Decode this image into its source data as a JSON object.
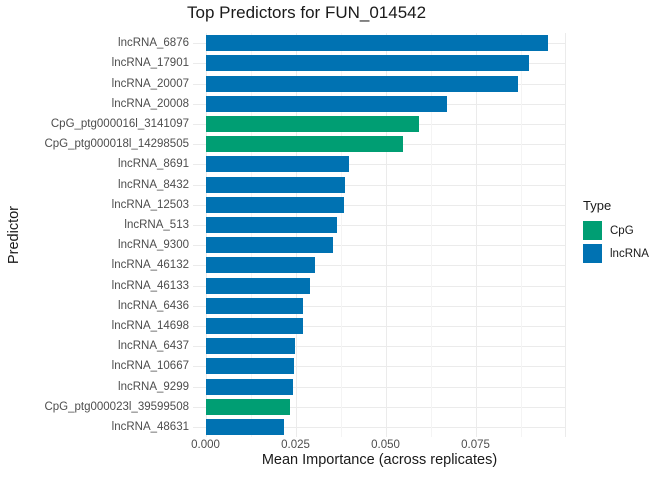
{
  "title": "Top Predictors for FUN_014542",
  "x_axis": {
    "label": "Mean Importance (across replicates)",
    "ticks": [
      {
        "label": "0.000",
        "value": 0.0
      },
      {
        "label": "0.025",
        "value": 0.025
      },
      {
        "label": "0.050",
        "value": 0.05
      },
      {
        "label": "0.075",
        "value": 0.075
      }
    ]
  },
  "y_axis": {
    "label": "Predictor"
  },
  "legend": {
    "title": "Type",
    "position": "right",
    "items": [
      {
        "label": "CpG",
        "color": "#009E73"
      },
      {
        "label": "lncRNA",
        "color": "#0072B2"
      }
    ]
  },
  "colors": {
    "bar_lncRNA": "#0072B2",
    "bar_CpG": "#009E73",
    "grid_major": "#ebebeb",
    "grid_minor": "#f4f4f4",
    "axis_text": "#4d4d4d",
    "text": "#1a1a1a",
    "background": "#ffffff"
  },
  "chart_data": {
    "type": "bar",
    "orientation": "horizontal",
    "title": "Top Predictors for FUN_014542",
    "xlabel": "Mean Importance (across replicates)",
    "ylabel": "Predictor",
    "xlim": [
      0,
      0.1
    ],
    "x_major_gridlines": [
      0,
      0.025,
      0.05,
      0.075,
      0.1
    ],
    "x_minor_gridlines": [
      0.0125,
      0.0375,
      0.0625,
      0.0875
    ],
    "grid": true,
    "legend_position": "right",
    "color_map": {
      "CpG": "#009E73",
      "lncRNA": "#0072B2"
    },
    "categories": [
      "lncRNA_6876",
      "lncRNA_17901",
      "lncRNA_20007",
      "lncRNA_20008",
      "CpG_ptg000016l_3141097",
      "CpG_ptg000018l_14298505",
      "lncRNA_8691",
      "lncRNA_8432",
      "lncRNA_12503",
      "lncRNA_513",
      "lncRNA_9300",
      "lncRNA_46132",
      "lncRNA_46133",
      "lncRNA_6436",
      "lncRNA_14698",
      "lncRNA_6437",
      "lncRNA_10667",
      "lncRNA_9299",
      "CpG_ptg000023l_39599508",
      "lncRNA_48631"
    ],
    "values": [
      0.0952,
      0.0899,
      0.0869,
      0.0671,
      0.0593,
      0.0549,
      0.0399,
      0.0388,
      0.0384,
      0.0366,
      0.0353,
      0.0304,
      0.0289,
      0.0271,
      0.0271,
      0.0248,
      0.0246,
      0.0244,
      0.0235,
      0.0217
    ],
    "types": [
      "lncRNA",
      "lncRNA",
      "lncRNA",
      "lncRNA",
      "CpG",
      "CpG",
      "lncRNA",
      "lncRNA",
      "lncRNA",
      "lncRNA",
      "lncRNA",
      "lncRNA",
      "lncRNA",
      "lncRNA",
      "lncRNA",
      "lncRNA",
      "lncRNA",
      "lncRNA",
      "CpG",
      "lncRNA"
    ]
  }
}
